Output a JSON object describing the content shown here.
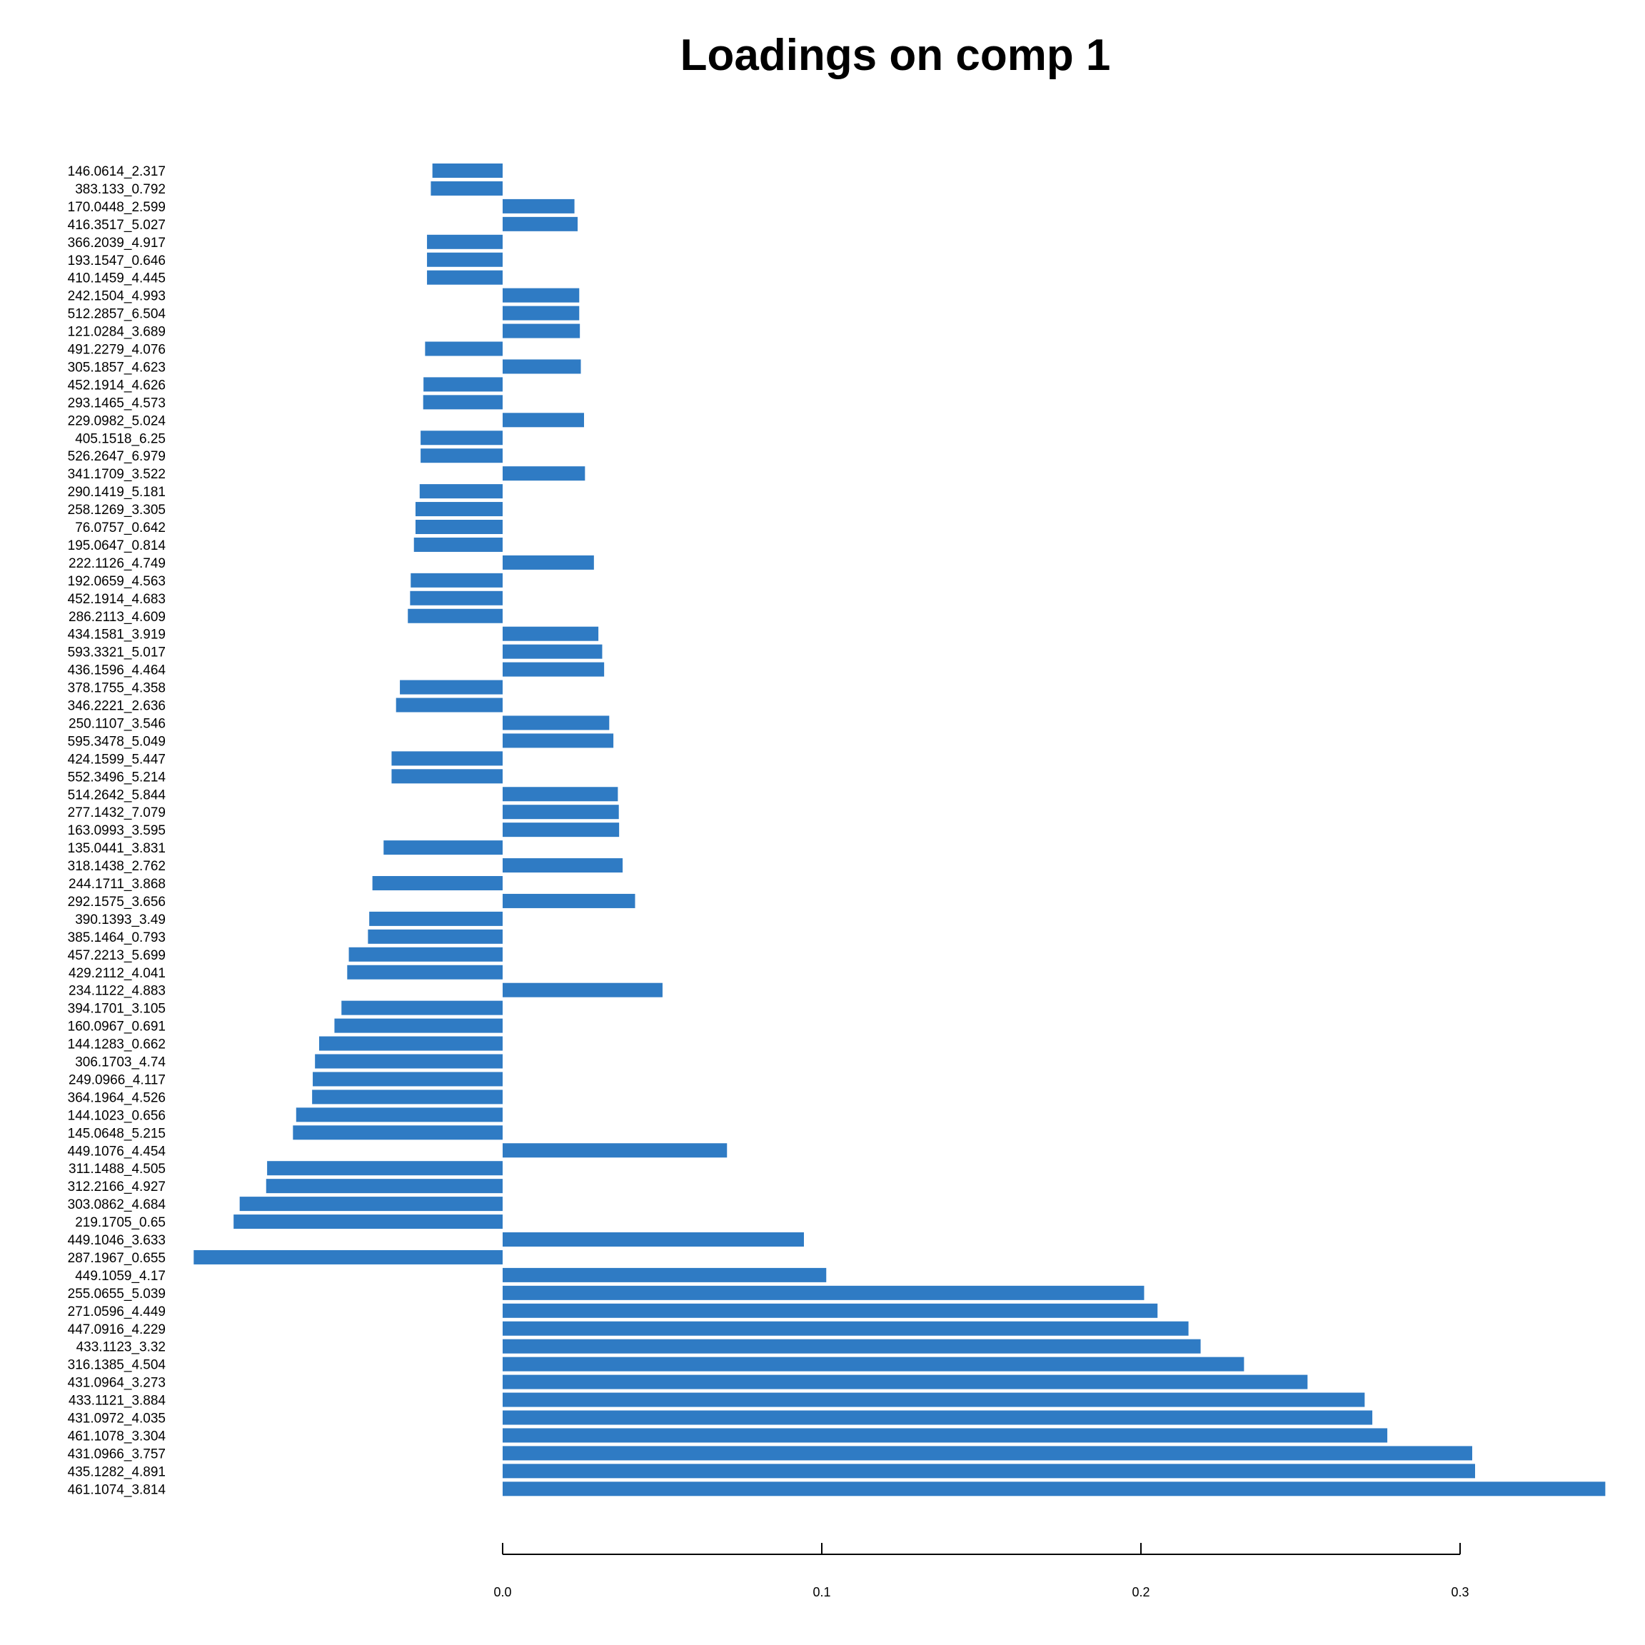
{
  "chart_data": {
    "type": "bar",
    "orientation": "horizontal",
    "title": "Loadings on comp 1",
    "xlabel": "",
    "ylabel": "",
    "color": "#2f7bc4",
    "xlim": [
      -0.097,
      0.346
    ],
    "xticks": [
      0.0,
      0.1,
      0.2,
      0.3
    ],
    "xtick_labels": [
      "0.0",
      "0.1",
      "0.2",
      "0.3"
    ],
    "grid": false,
    "legend": "none",
    "categories": [
      "146.0614_2.317",
      "383.133_0.792",
      "170.0448_2.599",
      "416.3517_5.027",
      "366.2039_4.917",
      "193.1547_0.646",
      "410.1459_4.445",
      "242.1504_4.993",
      "512.2857_6.504",
      "121.0284_3.689",
      "491.2279_4.076",
      "305.1857_4.623",
      "452.1914_4.626",
      "293.1465_4.573",
      "229.0982_5.024",
      "405.1518_6.25",
      "526.2647_6.979",
      "341.1709_3.522",
      "290.1419_5.181",
      "258.1269_3.305",
      "76.0757_0.642",
      "195.0647_0.814",
      "222.1126_4.749",
      "192.0659_4.563",
      "452.1914_4.683",
      "286.2113_4.609",
      "434.1581_3.919",
      "593.3321_5.017",
      "436.1596_4.464",
      "378.1755_4.358",
      "346.2221_2.636",
      "250.1107_3.546",
      "595.3478_5.049",
      "424.1599_5.447",
      "552.3496_5.214",
      "514.2642_5.844",
      "277.1432_7.079",
      "163.0993_3.595",
      "135.0441_3.831",
      "318.1438_2.762",
      "244.1711_3.868",
      "292.1575_3.656",
      "390.1393_3.49",
      "385.1464_0.793",
      "457.2213_5.699",
      "429.2112_4.041",
      "234.1122_4.883",
      "394.1701_3.105",
      "160.0967_0.691",
      "144.1283_0.662",
      "306.1703_4.74",
      "249.0966_4.117",
      "364.1964_4.526",
      "144.1023_0.656",
      "145.0648_5.215",
      "449.1076_4.454",
      "311.1488_4.505",
      "312.2166_4.927",
      "303.0862_4.684",
      "219.1705_0.65",
      "449.1046_3.633",
      "287.1967_0.655",
      "449.1059_4.17",
      "255.0655_5.039",
      "271.0596_4.449",
      "447.0916_4.229",
      "433.1123_3.32",
      "316.1385_4.504",
      "431.0964_3.273",
      "433.1121_3.884",
      "431.0972_4.035",
      "461.1078_3.304",
      "431.0966_3.757",
      "435.1282_4.891",
      "461.1074_3.814"
    ],
    "values": [
      -0.022,
      -0.0225,
      0.0225,
      0.0235,
      -0.0237,
      -0.0237,
      -0.0237,
      0.024,
      0.024,
      0.0242,
      -0.0243,
      0.0245,
      -0.0248,
      -0.0249,
      0.0255,
      -0.0257,
      -0.0257,
      0.0258,
      -0.026,
      -0.0273,
      -0.0273,
      -0.0278,
      0.0286,
      -0.0288,
      -0.029,
      -0.0297,
      0.03,
      0.0312,
      0.0318,
      -0.0322,
      -0.0334,
      0.0334,
      0.0347,
      -0.0348,
      -0.0348,
      0.0361,
      0.0364,
      0.0365,
      -0.0373,
      0.0376,
      -0.0408,
      0.0415,
      -0.0418,
      -0.0422,
      -0.0482,
      -0.0487,
      0.0501,
      -0.0505,
      -0.0527,
      -0.0575,
      -0.0588,
      -0.0595,
      -0.0597,
      -0.0647,
      -0.0657,
      0.0703,
      -0.0738,
      -0.0741,
      -0.0824,
      -0.0843,
      0.0944,
      -0.0968,
      0.1014,
      0.201,
      0.2052,
      0.2149,
      0.2187,
      0.2323,
      0.2522,
      0.2701,
      0.2725,
      0.2772,
      0.3038,
      0.3047,
      0.3455
    ]
  }
}
